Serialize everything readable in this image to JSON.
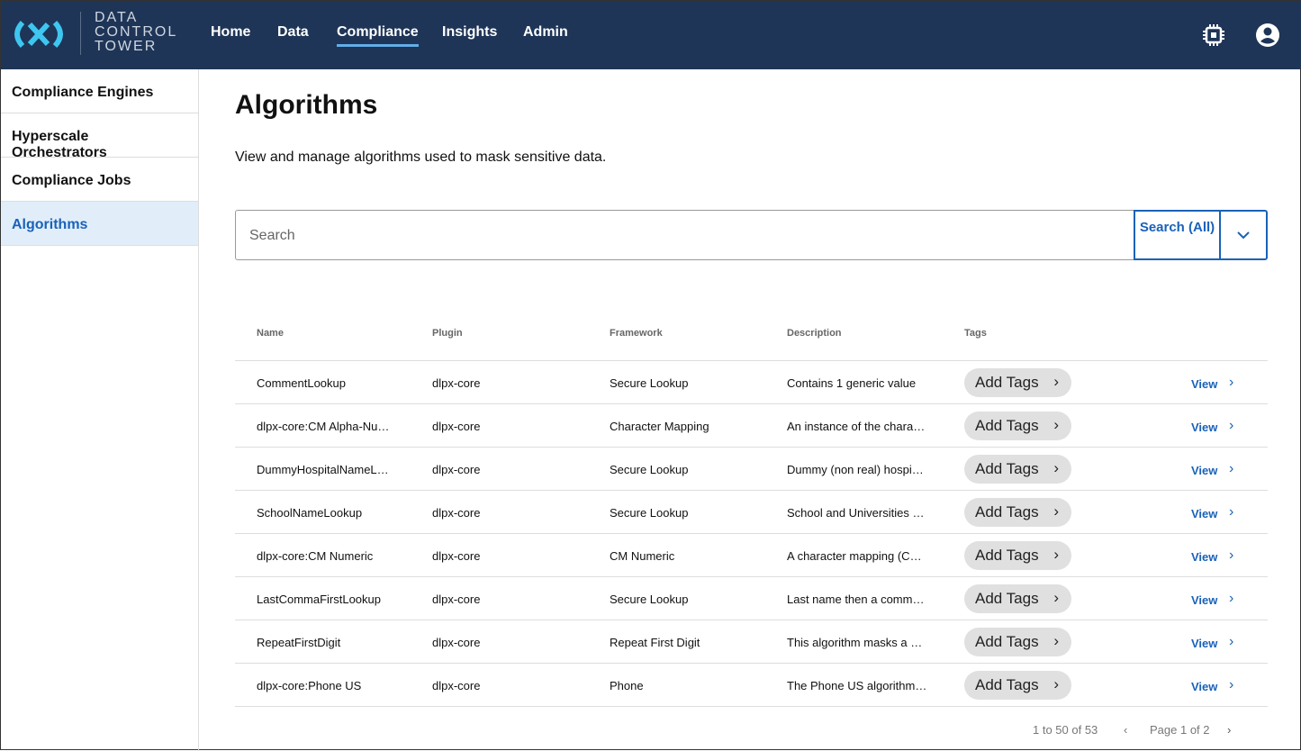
{
  "header": {
    "brand": [
      "DATA",
      "CONTROL",
      "TOWER"
    ],
    "nav": [
      "Home",
      "Data",
      "Compliance",
      "Insights",
      "Admin"
    ],
    "active": "Compliance",
    "icons": [
      "chip-icon",
      "account-icon"
    ]
  },
  "sidebar": {
    "items": [
      "Compliance Engines",
      "Hyperscale Orchestrators",
      "Compliance Jobs",
      "Algorithms"
    ],
    "active": "Algorithms"
  },
  "main": {
    "title": "Algorithms",
    "subtitle": "View and manage algorithms used to mask sensitive data.",
    "search": {
      "placeholder": "Search",
      "button": "Search (All)"
    },
    "columns": [
      "Name",
      "Plugin",
      "Framework",
      "Description",
      "Tags"
    ],
    "rows": [
      {
        "name": "CommentLookup",
        "plugin": "dlpx-core",
        "framework": "Secure Lookup",
        "description": "Contains 1 generic value"
      },
      {
        "name": "dlpx-core:CM Alpha-Nu…",
        "plugin": "dlpx-core",
        "framework": "Character Mapping",
        "description": "An instance of the chara…"
      },
      {
        "name": "DummyHospitalNameL…",
        "plugin": "dlpx-core",
        "framework": "Secure Lookup",
        "description": "Dummy (non real) hospi…"
      },
      {
        "name": "SchoolNameLookup",
        "plugin": "dlpx-core",
        "framework": "Secure Lookup",
        "description": "School and Universities …"
      },
      {
        "name": "dlpx-core:CM Numeric",
        "plugin": "dlpx-core",
        "framework": "CM Numeric",
        "description": "A character mapping (C…"
      },
      {
        "name": "LastCommaFirstLookup",
        "plugin": "dlpx-core",
        "framework": "Secure Lookup",
        "description": "Last name then a comm…"
      },
      {
        "name": "RepeatFirstDigit",
        "plugin": "dlpx-core",
        "framework": "Repeat First Digit",
        "description": "This algorithm masks a …"
      },
      {
        "name": "dlpx-core:Phone US",
        "plugin": "dlpx-core",
        "framework": "Phone",
        "description": "The Phone US algorithm…"
      }
    ],
    "add_tags": "Add Tags",
    "view": "View",
    "pagination": {
      "range": "1 to 50 of 53",
      "page": "Page 1 of 2"
    }
  }
}
